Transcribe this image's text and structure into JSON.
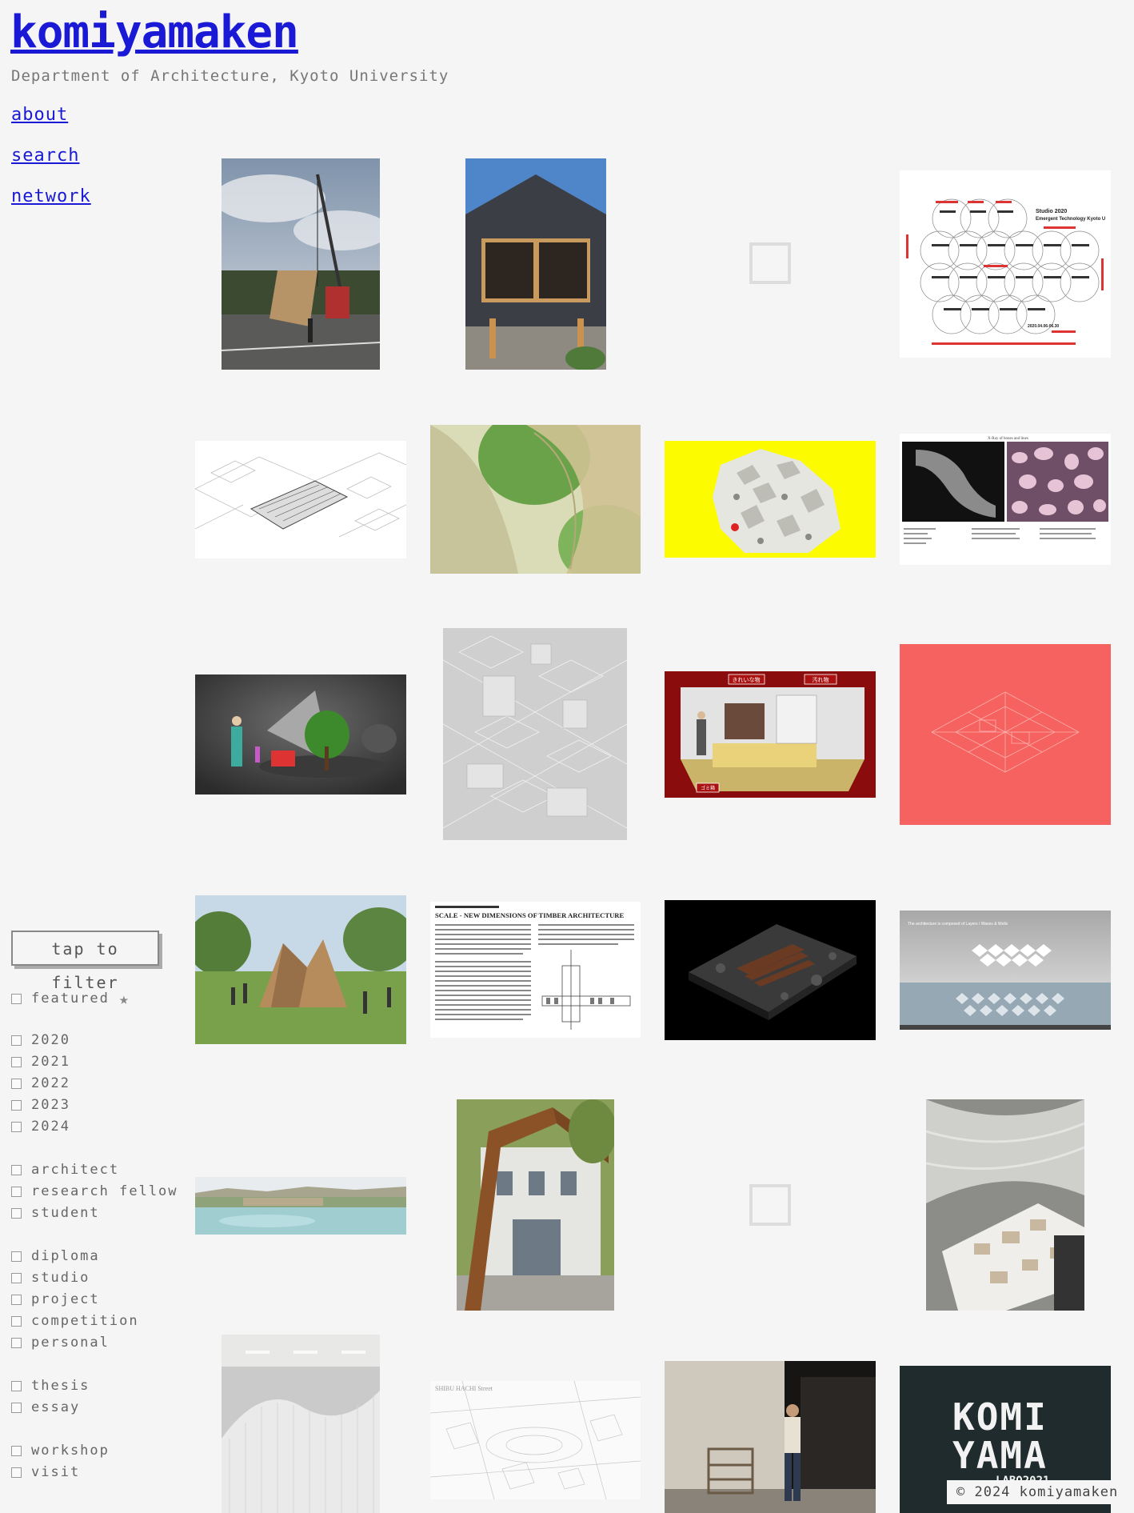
{
  "site": {
    "title": "komiyamaken",
    "subtitle": "Department of Architecture, Kyoto University"
  },
  "nav": {
    "items": [
      "about",
      "search",
      "network"
    ]
  },
  "filter": {
    "button_label": "tap to filter",
    "featured_label": "featured",
    "featured_icon": "star-icon",
    "years": [
      "2020",
      "2021",
      "2022",
      "2023",
      "2024"
    ],
    "roles": [
      "architect",
      "research fellow",
      "student"
    ],
    "categories": [
      "diploma",
      "studio",
      "project",
      "competition",
      "personal"
    ],
    "writings": [
      "thesis",
      "essay"
    ],
    "activities": [
      "workshop",
      "visit"
    ]
  },
  "gallery": {
    "studio_poster": {
      "heading": "Studio 2020",
      "subheading": "Emergent Technology Kyoto U",
      "date": "2020.04.06-06.30"
    },
    "bone_diagram_title": "X-Ray of bones and lines",
    "timber_article": {
      "headline": "SCALE - NEW DIMENSIONS OF TIMBER ARCHITECTURE"
    },
    "waves_diagram_caption": "The architecture is composed of Layers / Waves & Wells",
    "street_sketch_caption": "SHIBU HACHI Street",
    "logo": {
      "line1": "KOMI",
      "line2": "YAMA",
      "line3": "LABO2021"
    },
    "sign_labels": [
      "きれいな物",
      "汚れ物",
      "ゴミ箱"
    ]
  },
  "footer": {
    "copyright": "© 2024 komiyamaken"
  }
}
